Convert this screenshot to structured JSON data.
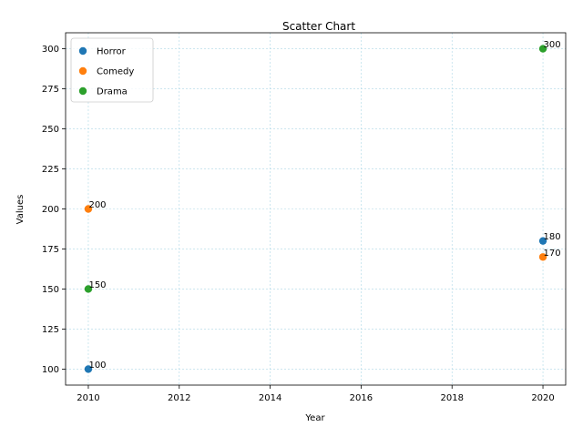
{
  "chart_data": {
    "type": "scatter",
    "title": "Scatter Chart",
    "xlabel": "Year",
    "ylabel": "Values",
    "xlim": [
      2009.5,
      2020.5
    ],
    "ylim": [
      90,
      310
    ],
    "xticks": [
      2010,
      2012,
      2014,
      2016,
      2018,
      2020
    ],
    "yticks": [
      100,
      125,
      150,
      175,
      200,
      225,
      250,
      275,
      300
    ],
    "grid": true,
    "legend_position": "top-left",
    "series": [
      {
        "name": "Horror",
        "color": "#1f77b4",
        "points": [
          {
            "x": 2010,
            "y": 100
          },
          {
            "x": 2020,
            "y": 180
          }
        ]
      },
      {
        "name": "Comedy",
        "color": "#ff7f0e",
        "points": [
          {
            "x": 2010,
            "y": 200
          },
          {
            "x": 2020,
            "y": 170
          }
        ]
      },
      {
        "name": "Drama",
        "color": "#2ca02c",
        "points": [
          {
            "x": 2010,
            "y": 150
          },
          {
            "x": 2020,
            "y": 300
          }
        ]
      }
    ]
  }
}
